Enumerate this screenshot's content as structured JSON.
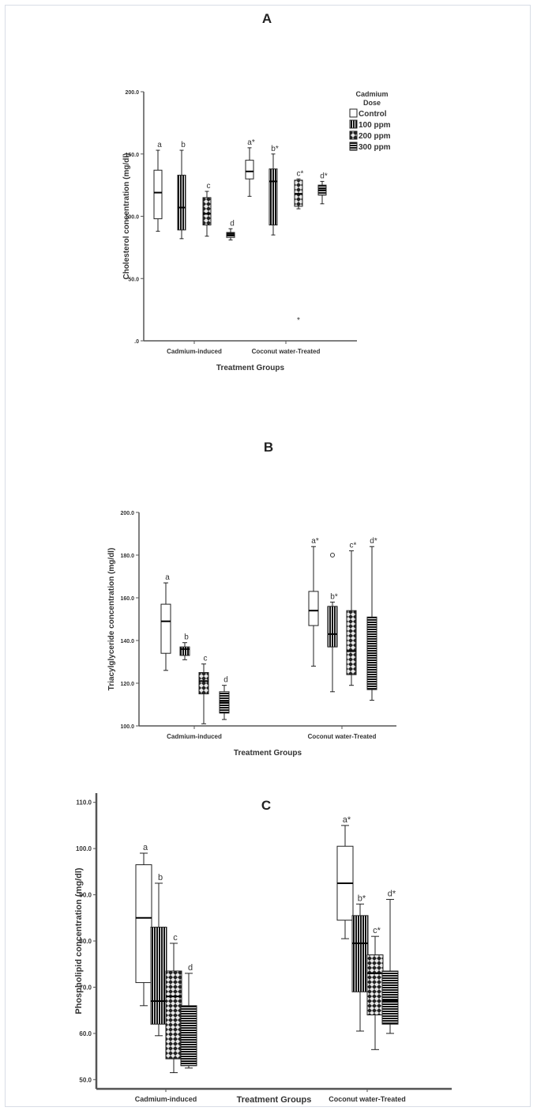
{
  "chart_data": [
    {
      "panel": "A",
      "type": "boxplot",
      "xlabel": "Treatment Groups",
      "ylabel": "Cholesterol concentration (mg/dl)",
      "ylim": [
        0,
        200
      ],
      "yticks": [
        0,
        50,
        100,
        150,
        200
      ],
      "ytick_labels": [
        ".0",
        "50.0",
        "100.0",
        "150.0",
        "200.0"
      ],
      "categories": [
        "Cadmium-induced",
        "Coconut water-Treated"
      ],
      "legend": {
        "title": "Cadmium Dose",
        "position": "top-right",
        "entries": [
          "Control",
          "100 ppm",
          "200 ppm",
          "300 ppm"
        ]
      },
      "series": [
        {
          "name": "Control",
          "pattern": "open",
          "boxes": [
            {
              "group": "Cadmium-induced",
              "whisker_low": 88,
              "q1": 98,
              "median": 119,
              "q3": 137,
              "whisker_high": 153,
              "label": "a"
            },
            {
              "group": "Coconut water-Treated",
              "whisker_low": 116,
              "q1": 130,
              "median": 136,
              "q3": 145,
              "whisker_high": 155,
              "label": "a*"
            }
          ]
        },
        {
          "name": "100 ppm",
          "pattern": "vertical",
          "boxes": [
            {
              "group": "Cadmium-induced",
              "whisker_low": 82,
              "q1": 89,
              "median": 107,
              "q3": 133,
              "whisker_high": 153,
              "label": "b"
            },
            {
              "group": "Coconut water-Treated",
              "whisker_low": 85,
              "q1": 93,
              "median": 128,
              "q3": 138,
              "whisker_high": 150,
              "label": "b*"
            }
          ]
        },
        {
          "name": "200 ppm",
          "pattern": "checker",
          "boxes": [
            {
              "group": "Cadmium-induced",
              "whisker_low": 84,
              "q1": 93,
              "median": 102,
              "q3": 115,
              "whisker_high": 120,
              "label": "c"
            },
            {
              "group": "Coconut water-Treated",
              "whisker_low": 106,
              "q1": 108,
              "median": 118,
              "q3": 129,
              "whisker_high": 130,
              "label": "c*",
              "outliers": [
                17
              ]
            }
          ]
        },
        {
          "name": "300 ppm",
          "pattern": "horizontal",
          "boxes": [
            {
              "group": "Cadmium-induced",
              "whisker_low": 81,
              "q1": 83,
              "median": 85,
              "q3": 87,
              "whisker_high": 90,
              "label": "d"
            },
            {
              "group": "Coconut water-Treated",
              "whisker_low": 110,
              "q1": 117,
              "median": 121,
              "q3": 125,
              "whisker_high": 128,
              "label": "d*"
            }
          ]
        }
      ]
    },
    {
      "panel": "B",
      "type": "boxplot",
      "xlabel": "Treatment Groups",
      "ylabel": "Triacylglyceride concentration (mg/dl)",
      "ylim": [
        100,
        200
      ],
      "yticks": [
        100,
        120,
        140,
        160,
        180,
        200
      ],
      "ytick_labels": [
        "100.0",
        "120.0",
        "140.0",
        "160.0",
        "180.0",
        "200.0"
      ],
      "categories": [
        "Cadmium-induced",
        "Coconut water-Treated"
      ],
      "series": [
        {
          "name": "Control",
          "pattern": "open",
          "boxes": [
            {
              "group": "Cadmium-induced",
              "whisker_low": 126,
              "q1": 134,
              "median": 149,
              "q3": 157,
              "whisker_high": 167,
              "label": "a"
            },
            {
              "group": "Coconut water-Treated",
              "whisker_low": 128,
              "q1": 147,
              "median": 154,
              "q3": 163,
              "whisker_high": 184,
              "label": "a*"
            }
          ]
        },
        {
          "name": "100 ppm",
          "pattern": "vertical",
          "boxes": [
            {
              "group": "Cadmium-induced",
              "whisker_low": 131,
              "q1": 133,
              "median": 136,
              "q3": 137,
              "whisker_high": 139,
              "label": "b"
            },
            {
              "group": "Coconut water-Treated",
              "whisker_low": 116,
              "q1": 137,
              "median": 143,
              "q3": 156,
              "whisker_high": 158,
              "label": "b*",
              "outliers": [
                180
              ]
            }
          ]
        },
        {
          "name": "200 ppm",
          "pattern": "checker",
          "boxes": [
            {
              "group": "Cadmium-induced",
              "whisker_low": 101,
              "q1": 115,
              "median": 121,
              "q3": 125,
              "whisker_high": 129,
              "label": "c"
            },
            {
              "group": "Coconut water-Treated",
              "whisker_low": 119,
              "q1": 124,
              "median": 135,
              "q3": 154,
              "whisker_high": 182,
              "label": "c*"
            }
          ]
        },
        {
          "name": "300 ppm",
          "pattern": "horizontal",
          "boxes": [
            {
              "group": "Cadmium-induced",
              "whisker_low": 103,
              "q1": 106,
              "median": 111,
              "q3": 116,
              "whisker_high": 119,
              "label": "d"
            },
            {
              "group": "Coconut water-Treated",
              "whisker_low": 112,
              "q1": 117,
              "median": 133,
              "q3": 151,
              "whisker_high": 184,
              "label": "d*"
            }
          ]
        }
      ]
    },
    {
      "panel": "C",
      "type": "boxplot",
      "xlabel": "Treatment Groups",
      "ylabel": "Phospholipid concentration (mg/dl)",
      "ylim": [
        48,
        112
      ],
      "yticks": [
        50,
        60,
        70,
        80,
        90,
        100,
        110
      ],
      "ytick_labels": [
        "50.0",
        "60.0",
        "70.0",
        "80.0",
        "90.0",
        "100.0",
        "110.0"
      ],
      "categories": [
        "Cadmium-induced",
        "Coconut water-Treated"
      ],
      "series": [
        {
          "name": "Control",
          "pattern": "open",
          "boxes": [
            {
              "group": "Cadmium-induced",
              "whisker_low": 66,
              "q1": 71,
              "median": 85,
              "q3": 96.5,
              "whisker_high": 99,
              "label": "a"
            },
            {
              "group": "Coconut water-Treated",
              "whisker_low": 80.5,
              "q1": 84.5,
              "median": 92.5,
              "q3": 100.5,
              "whisker_high": 105,
              "label": "a*"
            }
          ]
        },
        {
          "name": "100 ppm",
          "pattern": "vertical",
          "boxes": [
            {
              "group": "Cadmium-induced",
              "whisker_low": 59.5,
              "q1": 62,
              "median": 67,
              "q3": 83,
              "whisker_high": 92.5,
              "label": "b"
            },
            {
              "group": "Coconut water-Treated",
              "whisker_low": 60.5,
              "q1": 69,
              "median": 79.5,
              "q3": 85.5,
              "whisker_high": 88,
              "label": "b*"
            }
          ]
        },
        {
          "name": "200 ppm",
          "pattern": "checker",
          "boxes": [
            {
              "group": "Cadmium-induced",
              "whisker_low": 51.5,
              "q1": 54.5,
              "median": 68,
              "q3": 73.5,
              "whisker_high": 79.5,
              "label": "c"
            },
            {
              "group": "Coconut water-Treated",
              "whisker_low": 56.5,
              "q1": 64,
              "median": 73,
              "q3": 77,
              "whisker_high": 81,
              "label": "c*"
            }
          ]
        },
        {
          "name": "300 ppm",
          "pattern": "horizontal",
          "boxes": [
            {
              "group": "Cadmium-induced",
              "whisker_low": 52.5,
              "q1": 53,
              "median": 53.5,
              "q3": 66,
              "whisker_high": 73,
              "label": "d"
            },
            {
              "group": "Coconut water-Treated",
              "whisker_low": 60,
              "q1": 62,
              "median": 67,
              "q3": 73.5,
              "whisker_high": 89,
              "label": "d*"
            }
          ]
        }
      ]
    }
  ]
}
